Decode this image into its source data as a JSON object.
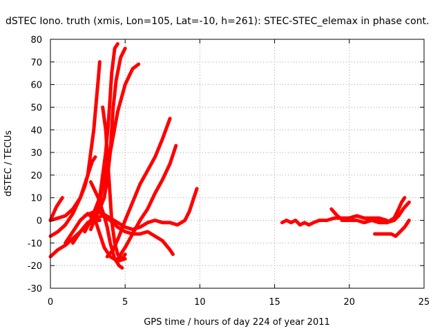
{
  "chart_data": {
    "type": "line",
    "title": "dSTEC Iono. truth (xmis, Lon=105, Lat=-10, h=261): STEC-STEC_elemax in phase cont.",
    "xlabel": "GPS time / hours of day 224 of year 2011",
    "ylabel": "dSTEC  / TECUs",
    "xlim": [
      0,
      25
    ],
    "ylim": [
      -30,
      80
    ],
    "xticks": [
      0,
      5,
      10,
      15,
      20,
      25
    ],
    "yticks": [
      -30,
      -20,
      -10,
      0,
      10,
      20,
      30,
      40,
      50,
      60,
      70,
      80
    ],
    "xtick_labels": [
      "0",
      "5",
      "10",
      "15",
      "20",
      "25"
    ],
    "ytick_labels": [
      "-30",
      "-20",
      "-10",
      "0",
      "10",
      "20",
      "30",
      "40",
      "50",
      "60",
      "70",
      "80"
    ],
    "grid": true,
    "legend": "none",
    "series_color": "#ff0000",
    "series": [
      {
        "x": [
          0,
          0.2,
          0.4,
          0.6,
          0.8
        ],
        "y": [
          0,
          3,
          6,
          8,
          10
        ]
      },
      {
        "x": [
          0,
          0.5,
          1.0,
          1.5,
          2.0,
          2.3,
          2.5,
          2.7,
          2.9,
          3.1,
          3.2,
          3.3
        ],
        "y": [
          0,
          1,
          2,
          5,
          10,
          15,
          20,
          30,
          40,
          55,
          62,
          70
        ]
      },
      {
        "x": [
          0,
          0.5,
          1.0,
          1.5,
          2.0,
          2.5,
          2.8,
          3.0
        ],
        "y": [
          -7,
          -5,
          -2,
          3,
          10,
          20,
          26,
          28
        ]
      },
      {
        "x": [
          0,
          0.5,
          1.0,
          1.5,
          2.0,
          2.5,
          3.0,
          3.3
        ],
        "y": [
          -16,
          -13,
          -11,
          -8,
          -5,
          -2,
          0,
          0
        ]
      },
      {
        "x": [
          2.3,
          2.7,
          3.0,
          3.3,
          3.5,
          3.7,
          3.9,
          4.0,
          4.1,
          4.3,
          4.5
        ],
        "y": [
          -5,
          0,
          5,
          10,
          20,
          30,
          45,
          55,
          65,
          76,
          78
        ]
      },
      {
        "x": [
          2.7,
          3.0,
          3.3,
          3.6,
          3.8,
          4.0,
          4.1,
          4.2,
          4.4,
          4.7,
          5.0
        ],
        "y": [
          -4,
          1,
          5,
          10,
          18,
          30,
          40,
          50,
          62,
          72,
          76
        ]
      },
      {
        "x": [
          2.8,
          3.2,
          3.5,
          4.0,
          4.5,
          5.0,
          5.5,
          5.9
        ],
        "y": [
          -2,
          5,
          15,
          30,
          48,
          60,
          67,
          69
        ]
      },
      {
        "x": [
          3.5,
          3.7,
          3.8,
          3.9,
          4.0,
          4.1,
          4.3,
          4.5,
          4.8,
          5.0
        ],
        "y": [
          50,
          40,
          30,
          20,
          10,
          0,
          -10,
          -15,
          -17,
          -15
        ]
      },
      {
        "x": [
          2.7,
          3.2,
          3.6,
          3.8,
          4.0,
          4.3,
          4.6,
          4.8
        ],
        "y": [
          17,
          10,
          2,
          -3,
          -10,
          -17,
          -20,
          -21
        ]
      },
      {
        "x": [
          1.0,
          1.5,
          2.0,
          2.5,
          3.0,
          3.3,
          3.6,
          4.0,
          4.5,
          5.0
        ],
        "y": [
          -10,
          -5,
          0,
          3,
          0,
          -6,
          -12,
          -16,
          -18,
          -17
        ]
      },
      {
        "x": [
          3.8,
          4.2,
          4.6,
          5.0,
          5.5,
          6.0,
          6.5,
          7.0,
          7.5,
          8.0
        ],
        "y": [
          -16,
          -13,
          -7,
          0,
          8,
          16,
          22,
          28,
          36,
          45
        ]
      },
      {
        "x": [
          4.5,
          5.0,
          5.5,
          6.0,
          6.5,
          7.0,
          7.5,
          8.0,
          8.4
        ],
        "y": [
          -17,
          -12,
          -6,
          0,
          5,
          12,
          18,
          25,
          33
        ]
      },
      {
        "x": [
          1.5,
          2.0,
          2.5,
          3.0,
          3.5,
          4.0,
          4.5,
          5.0,
          5.5,
          6.0,
          6.5,
          7.0,
          7.5,
          8.0,
          8.2
        ],
        "y": [
          -10,
          -5,
          -1,
          1,
          2,
          0,
          -3,
          -5,
          -6,
          -6,
          -5,
          -7,
          -9,
          -13,
          -15
        ]
      },
      {
        "x": [
          2.3,
          3.0,
          3.5,
          4.0,
          4.5,
          5.0,
          5.5,
          6.0,
          6.5,
          7.0,
          7.5,
          8.0,
          8.5,
          9.0,
          9.3,
          9.6,
          9.8
        ],
        "y": [
          2,
          4,
          3,
          1,
          -1,
          -3,
          -4,
          -3,
          -1,
          0,
          -1,
          -1,
          -2,
          0,
          4,
          10,
          14
        ]
      },
      {
        "x": [
          15.5,
          15.8,
          16.1,
          16.4,
          16.7,
          17.0,
          17.3,
          17.6,
          18.0,
          18.5,
          19.0,
          19.5,
          20.0,
          20.5,
          21.0,
          21.5,
          22.0,
          22.5
        ],
        "y": [
          -1,
          0,
          -1,
          0,
          -2,
          -1,
          -2,
          -1,
          0,
          0,
          1,
          1,
          1,
          2,
          1,
          1,
          1,
          0
        ]
      },
      {
        "x": [
          18.8,
          19.2,
          19.6,
          20.0,
          20.5,
          21.0,
          21.5,
          22.0,
          22.5,
          23.0,
          23.3,
          23.5,
          23.7
        ],
        "y": [
          5,
          2,
          0,
          0,
          0,
          -1,
          0,
          0,
          -1,
          1,
          5,
          8,
          10
        ]
      },
      {
        "x": [
          19.5,
          20.0,
          20.5,
          21.0,
          21.5,
          22.0,
          22.5,
          23.0,
          23.3,
          23.6,
          24.0
        ],
        "y": [
          0,
          1,
          2,
          1,
          0,
          -1,
          -1,
          0,
          2,
          5,
          8
        ]
      },
      {
        "x": [
          21.7,
          22.0,
          22.4,
          22.8,
          23.1,
          23.4,
          23.7,
          24.0
        ],
        "y": [
          -6,
          -6,
          -6,
          -6,
          -7,
          -5,
          -3,
          0
        ]
      }
    ]
  }
}
